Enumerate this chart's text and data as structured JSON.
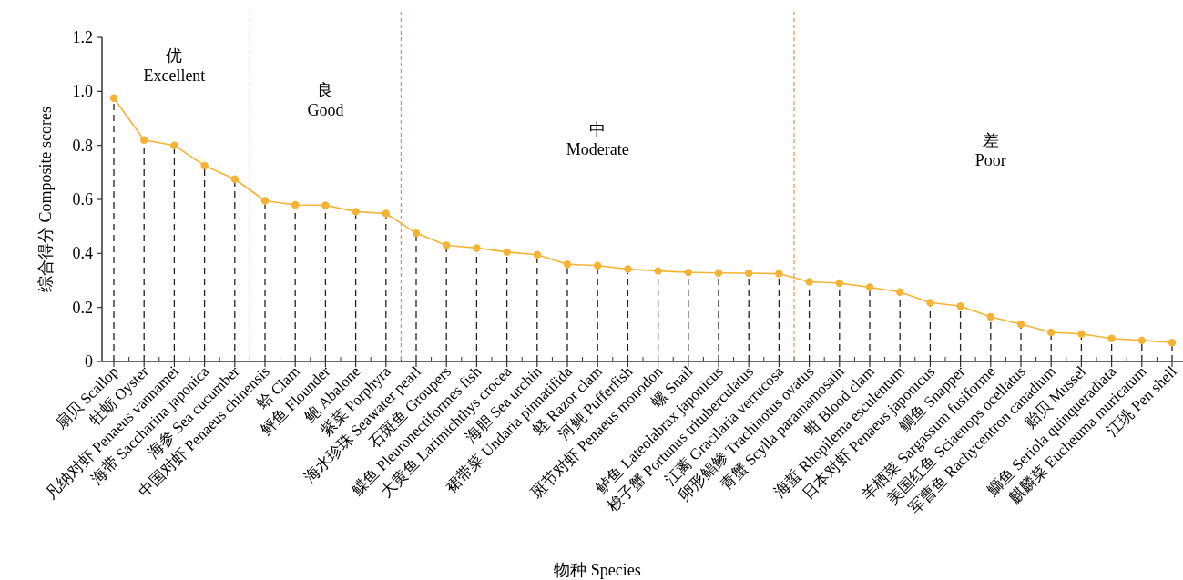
{
  "chart_data": {
    "type": "line",
    "xlabel": "物种 Species",
    "ylabel": "综合得分 Composite scores",
    "categories": [
      "扇贝 Scallop",
      "牡蛎 Oyster",
      "凡纳对虾 Penaeus vannamei",
      "海带 Saccharina japonica",
      "海参 Sea cucumber",
      "中国对虾 Penaeus chinensis",
      "蛤 Clam",
      "鲆鱼 Flounder",
      "鲍 Abalone",
      "紫菜 Porphyra",
      "海水珍珠 Seawater pearl",
      "石斑鱼 Groupers",
      "鲽鱼 Pleuronectiformes fish",
      "大黄鱼 Larimichthys crocea",
      "海胆 Sea urchin",
      "裙带菜 Undaria pinnatifida",
      "蛏 Razor clam",
      "河鲀 Pufferfish",
      "斑节对虾 Penaeus monodon",
      "螺 Snail",
      "鲈鱼 Lateolabrax japonicus",
      "梭子蟹 Portunus trituberculatus",
      "江蓠 Gracilaria verrucosa",
      "卵形鲳鲹 Trachinotus ovatus",
      "青蟹 Scylla paramamosain",
      "蚶 Blood clam",
      "海蜇 Rhopilema esculentum",
      "日本对虾 Penaeus japonicus",
      "鲷鱼 Snapper",
      "羊栖菜 Sargassum fusiforme",
      "美国红鱼 Sciaenops ocellatus",
      "军曹鱼 Rachycentron canadium",
      "贻贝 Mussel",
      "鰤鱼 Seriola quinqueradiata",
      "麒麟菜 Eucheuma muricatum",
      "江珧 Pen shell"
    ],
    "series": [
      {
        "color": "#f5b335",
        "line_style": "solid",
        "values": [
          0.975,
          0.82,
          0.8,
          0.725,
          0.675,
          0.595,
          0.58,
          0.578,
          0.555,
          0.548,
          0.475,
          0.43,
          0.42,
          0.405,
          0.395,
          0.36,
          0.355,
          0.342,
          0.335,
          0.33,
          0.328,
          0.327,
          0.325,
          0.295,
          0.29,
          0.275,
          0.257,
          0.218,
          0.205,
          0.165,
          0.138,
          0.108,
          0.102,
          0.085,
          0.078,
          0.07
        ]
      },
      {
        "type": "lollipop",
        "color": "#f5b335",
        "line_style": "dashed",
        "marker": "circle",
        "values": [
          0.975,
          0.82,
          0.8,
          0.725,
          0.675,
          0.595,
          0.58,
          0.578,
          0.555,
          0.548,
          0.475,
          0.43,
          0.42,
          0.405,
          0.395,
          0.36,
          0.355,
          0.342,
          0.335,
          0.33,
          0.328,
          0.327,
          0.325,
          0.295,
          0.29,
          0.275,
          0.257,
          0.218,
          0.205,
          0.165,
          0.138,
          0.108,
          0.102,
          0.085,
          0.078,
          0.07
        ]
      }
    ],
    "ylim": [
      0,
      1.2
    ],
    "yticks": [
      0,
      0.2,
      0.4,
      0.6,
      0.8,
      {
        "value": 1,
        "label": "1.0"
      },
      1.2
    ],
    "annotations": [
      "优\nExcellent",
      "良\nGood",
      "中\nModerate",
      "差\nPoor"
    ],
    "grid": false
  }
}
